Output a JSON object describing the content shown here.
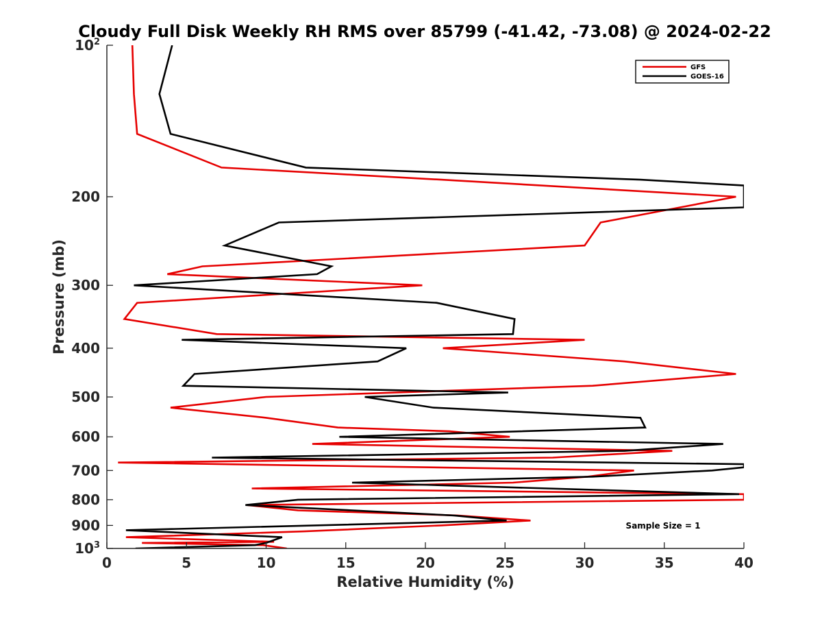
{
  "chart_data": {
    "type": "line",
    "title": "Cloudy Full Disk Weekly RH RMS over 85799 (-41.42, -73.08) @ 2024-02-22",
    "xlabel": "Relative Humidity (%)",
    "ylabel": "Pressure (mb)",
    "xlim": [
      0,
      40
    ],
    "ylim": [
      100,
      1000
    ],
    "y_scale": "log",
    "y_reversed": true,
    "grid": false,
    "legend_position": "top-right",
    "x_ticks": [
      "0",
      "5",
      "10",
      "15",
      "20",
      "25",
      "30",
      "35",
      "40"
    ],
    "y_ticks": [
      {
        "value": 100,
        "base": "10",
        "exp": "2"
      },
      {
        "value": 200,
        "label": "200"
      },
      {
        "value": 300,
        "label": "300"
      },
      {
        "value": 400,
        "label": "400"
      },
      {
        "value": 500,
        "label": "500"
      },
      {
        "value": 600,
        "label": "600"
      },
      {
        "value": 700,
        "label": "700"
      },
      {
        "value": 800,
        "label": "800"
      },
      {
        "value": 900,
        "label": "900"
      },
      {
        "value": 1000,
        "base": "10",
        "exp": "3"
      }
    ],
    "annotation": "Sample Size = 1",
    "series": [
      {
        "name": "GFS",
        "color": "#e60000",
        "points": [
          [
            1.6,
            100
          ],
          [
            1.7,
            125
          ],
          [
            1.9,
            150
          ],
          [
            7.2,
            175
          ],
          [
            21,
            185
          ],
          [
            39.5,
            200
          ],
          [
            31,
            225
          ],
          [
            30,
            250
          ],
          [
            6,
            275
          ],
          [
            3.8,
            285
          ],
          [
            19.8,
            300
          ],
          [
            1.9,
            325
          ],
          [
            1.1,
            350
          ],
          [
            6.9,
            375
          ],
          [
            30,
            385
          ],
          [
            21.1,
            400
          ],
          [
            32.5,
            425
          ],
          [
            39.5,
            450
          ],
          [
            30.5,
            475
          ],
          [
            10,
            500
          ],
          [
            4,
            525
          ],
          [
            10,
            550
          ],
          [
            14.5,
            575
          ],
          [
            21.5,
            585
          ],
          [
            25.3,
            600
          ],
          [
            12.9,
            620
          ],
          [
            35.5,
            640
          ],
          [
            28,
            660
          ],
          [
            0.7,
            675
          ],
          [
            33.1,
            700
          ],
          [
            30.2,
            720
          ],
          [
            25.5,
            740
          ],
          [
            9.1,
            760
          ],
          [
            40,
            780
          ],
          [
            40,
            800
          ],
          [
            8.8,
            820
          ],
          [
            12,
            840
          ],
          [
            22,
            860
          ],
          [
            26.6,
            880
          ],
          [
            21,
            900
          ],
          [
            12.4,
            925
          ],
          [
            1.2,
            950
          ],
          [
            10.5,
            970
          ],
          [
            2.2,
            975
          ],
          [
            9.8,
            985
          ],
          [
            11.3,
            1000
          ]
        ]
      },
      {
        "name": "GOES-16",
        "color": "#000000",
        "points": [
          [
            4.1,
            100
          ],
          [
            3.3,
            125
          ],
          [
            4,
            150
          ],
          [
            12.5,
            175
          ],
          [
            33.5,
            185
          ],
          [
            40,
            190
          ],
          [
            40,
            210
          ],
          [
            10.8,
            225
          ],
          [
            7.4,
            250
          ],
          [
            14.1,
            275
          ],
          [
            13.2,
            285
          ],
          [
            1.7,
            300
          ],
          [
            20.7,
            325
          ],
          [
            25.6,
            350
          ],
          [
            25.5,
            375
          ],
          [
            4.7,
            385
          ],
          [
            18.8,
            400
          ],
          [
            17,
            425
          ],
          [
            5.5,
            450
          ],
          [
            4.8,
            475
          ],
          [
            25.2,
            490
          ],
          [
            16.2,
            500
          ],
          [
            20.5,
            525
          ],
          [
            33.5,
            550
          ],
          [
            33.8,
            575
          ],
          [
            14.6,
            600
          ],
          [
            38.7,
            620
          ],
          [
            32.5,
            640
          ],
          [
            6.6,
            660
          ],
          [
            40,
            680
          ],
          [
            40,
            690
          ],
          [
            38,
            700
          ],
          [
            30.5,
            720
          ],
          [
            15.4,
            740
          ],
          [
            39.7,
            780
          ],
          [
            12,
            800
          ],
          [
            8.7,
            820
          ],
          [
            21.8,
            860
          ],
          [
            25.1,
            880
          ],
          [
            1.2,
            920
          ],
          [
            11,
            950
          ],
          [
            10,
            975
          ],
          [
            9.3,
            985
          ],
          [
            1.8,
            1000
          ]
        ]
      }
    ]
  }
}
